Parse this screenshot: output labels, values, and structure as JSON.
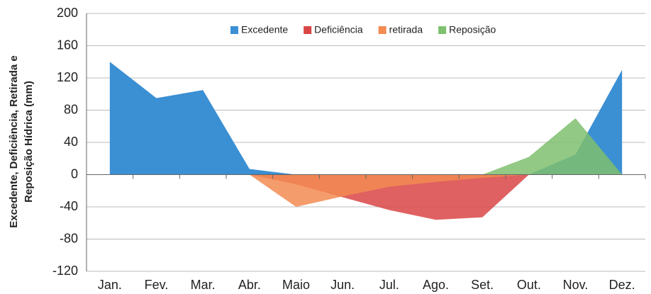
{
  "chart_data": {
    "type": "area",
    "ylabel": [
      "Excedente, Deficiência, Retirada e",
      "Reposição Hídrica (mm)"
    ],
    "categories": [
      "Jan.",
      "Fev.",
      "Mar.",
      "Abr.",
      "Maio",
      "Jun.",
      "Jul.",
      "Ago.",
      "Set.",
      "Out.",
      "Nov.",
      "Dez."
    ],
    "series": [
      {
        "name": "Excedente",
        "color": "#3b8fd3",
        "values": [
          140,
          95,
          105,
          7,
          0,
          0,
          0,
          0,
          0,
          0,
          25,
          130
        ]
      },
      {
        "name": "Deficiência",
        "color": "#d94545",
        "values": [
          null,
          null,
          null,
          0,
          -12,
          -28,
          -44,
          -56,
          -53,
          0,
          null,
          null
        ]
      },
      {
        "name": "retirada",
        "color": "#f38b52",
        "values": [
          null,
          null,
          null,
          0,
          -40,
          -27,
          -15,
          -9,
          -4,
          0,
          null,
          null
        ]
      },
      {
        "name": "Reposição",
        "color": "#7fc06f",
        "values": [
          null,
          null,
          null,
          null,
          null,
          null,
          null,
          null,
          0,
          22,
          70,
          0
        ]
      }
    ],
    "ylim": [
      -120,
      200
    ],
    "yticks": [
      -120,
      -80,
      -40,
      0,
      40,
      80,
      120,
      160,
      200
    ],
    "grid": true
  }
}
